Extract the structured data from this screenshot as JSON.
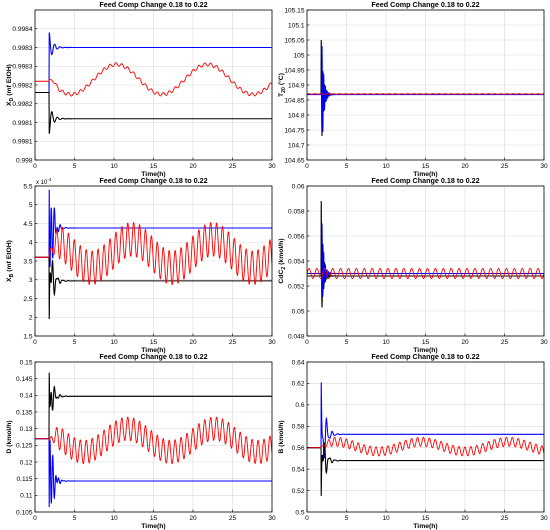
{
  "figure": {
    "background": "#ffffff",
    "grid_color": "#d9d9d9"
  },
  "chart_data": [
    {
      "type": "line",
      "title": "Feed Comp Change 0.18 to 0.22",
      "xlabel": "Time(h)",
      "ylabel": "X",
      "ylabel_sub": "D",
      "ylabel_rest": " (mf EtOH)",
      "xlim": [
        0,
        30
      ],
      "ylim": [
        0.998,
        0.9984
      ],
      "xticks": [
        "0",
        "5",
        "10",
        "15",
        "20",
        "25",
        "30"
      ],
      "yticks": [
        "0.998",
        "0.9981",
        "0.9981",
        "0.9982",
        "0.9982",
        "0.9983",
        "0.9983",
        "0.9984"
      ],
      "ytick_values": [
        0.998,
        0.99805,
        0.9981,
        0.99815,
        0.9982,
        0.99825,
        0.9983,
        0.99835
      ],
      "y_exponent": "",
      "grid": true,
      "series": [
        {
          "color": "#0000ff",
          "kind": "step",
          "initial": 0.99818,
          "disturb_at": 1.8,
          "final": 0.9983,
          "spike": 0.99834,
          "osc_amp": 0.0
        },
        {
          "color": "#000000",
          "kind": "step",
          "initial": 0.99818,
          "disturb_at": 1.8,
          "final": 0.99811,
          "spike": 0.99807,
          "osc_amp": 0.0
        },
        {
          "color": "#ff0000",
          "kind": "wave",
          "start": 0.99821,
          "mean": 0.998215,
          "slow_amp": 4e-05,
          "slow_period": 11.5,
          "slow_phase": 3.2,
          "fast_amp": 4.5e-06,
          "fast_period": 0.75
        }
      ]
    },
    {
      "type": "line",
      "title": "Feed Comp Change 0.18 to 0.22",
      "xlabel": "Time(h)",
      "ylabel": "T",
      "ylabel_sub": "20",
      "ylabel_rest": " (°C)",
      "xlim": [
        0,
        30
      ],
      "ylim": [
        104.65,
        105.15
      ],
      "xticks": [
        "0",
        "5",
        "10",
        "15",
        "20",
        "25",
        "30"
      ],
      "yticks": [
        "104.65",
        "104.7",
        "104.75",
        "104.8",
        "104.85",
        "104.9",
        "104.95",
        "105",
        "105.05",
        "105.1",
        "105.15"
      ],
      "ytick_values": [
        104.65,
        104.7,
        104.75,
        104.8,
        104.85,
        104.9,
        104.95,
        105.0,
        105.05,
        105.1,
        105.15
      ],
      "y_exponent": "",
      "grid": true,
      "series": [
        {
          "color": "#000000",
          "kind": "spike",
          "level": 104.869,
          "disturb_at": 1.8,
          "hi": 105.05,
          "lo": 104.66
        },
        {
          "color": "#0000ff",
          "kind": "spike",
          "level": 104.868,
          "disturb_at": 1.9,
          "hi": 105.03,
          "lo": 104.68
        },
        {
          "color": "#ff0000",
          "kind": "flat",
          "level": 104.87,
          "ripple": 0.001
        }
      ]
    },
    {
      "type": "line",
      "title": "Feed Comp Change 0.18 to 0.22",
      "xlabel": "Time(h)",
      "ylabel": "X",
      "ylabel_sub": "B",
      "ylabel_rest": " (mf EtOH)",
      "xlim": [
        0,
        30
      ],
      "ylim": [
        1.5,
        5.5
      ],
      "xticks": [
        "0",
        "5",
        "10",
        "15",
        "20",
        "25",
        "30"
      ],
      "yticks": [
        "1.5",
        "2",
        "2.5",
        "3",
        "3.5",
        "4",
        "4.5",
        "5",
        "5.5"
      ],
      "ytick_values": [
        1.5,
        2,
        2.5,
        3,
        3.5,
        4,
        4.5,
        5,
        5.5
      ],
      "y_exponent": "x 10",
      "y_exponent_power": "-4",
      "grid": true,
      "series": [
        {
          "color": "#0000ff",
          "kind": "step",
          "initial": 3.6,
          "disturb_at": 1.8,
          "final": 4.38,
          "spike": 5.4,
          "dip": 2.3
        },
        {
          "color": "#000000",
          "kind": "step",
          "initial": 3.6,
          "disturb_at": 1.8,
          "final": 2.97,
          "spike": 1.95,
          "dip": 3.9
        },
        {
          "color": "#ff0000",
          "kind": "wave",
          "start": 3.6,
          "mean": 3.7,
          "slow_amp": 0.38,
          "slow_period": 10.2,
          "slow_phase": 1.4,
          "fast_amp": 0.45,
          "fast_period": 0.75
        }
      ]
    },
    {
      "type": "line",
      "title": "Feed Comp Change 0.18 to 0.22",
      "xlabel": "Time(h)",
      "ylabel": "CdC",
      "ylabel_sub": "2",
      "ylabel_rest": " (kmol/h)",
      "xlim": [
        0,
        30
      ],
      "ylim": [
        0.048,
        0.06
      ],
      "xticks": [
        "0",
        "5",
        "10",
        "15",
        "20",
        "25",
        "30"
      ],
      "yticks": [
        "0.048",
        "0.05",
        "0.052",
        "0.054",
        "0.056",
        "0.058",
        "0.06"
      ],
      "ytick_values": [
        0.048,
        0.05,
        0.052,
        0.054,
        0.056,
        0.058,
        0.06
      ],
      "y_exponent": "",
      "grid": true,
      "series": [
        {
          "color": "#000000",
          "kind": "spike",
          "level": 0.0528,
          "disturb_at": 1.8,
          "hi": 0.0588,
          "lo": 0.049
        },
        {
          "color": "#0000ff",
          "kind": "spike",
          "level": 0.053,
          "disturb_at": 1.9,
          "hi": 0.057,
          "lo": 0.0502
        },
        {
          "color": "#ff0000",
          "kind": "band",
          "level": 0.053,
          "amp": 0.0004,
          "period": 1.0
        }
      ]
    },
    {
      "type": "line",
      "title": "Feed Comp Change 0.18 to 0.22",
      "xlabel": "Time(h)",
      "ylabel": "D",
      "ylabel_sub": "",
      "ylabel_rest": " (kmol/h)",
      "xlim": [
        0,
        30
      ],
      "ylim": [
        0.105,
        0.15
      ],
      "xticks": [
        "0",
        "5",
        "10",
        "15",
        "20",
        "25",
        "30"
      ],
      "yticks": [
        "0.105",
        "0.11",
        "0.115",
        "0.12",
        "0.125",
        "0.13",
        "0.135",
        "0.14",
        "0.145",
        "0.15"
      ],
      "ytick_values": [
        0.105,
        0.11,
        0.115,
        0.12,
        0.125,
        0.13,
        0.135,
        0.14,
        0.145,
        0.15
      ],
      "y_exponent": "",
      "grid": true,
      "series": [
        {
          "color": "#000000",
          "kind": "step",
          "initial": 0.127,
          "disturb_at": 1.8,
          "final": 0.1397,
          "spike": 0.1468,
          "dip": 0.131
        },
        {
          "color": "#0000ff",
          "kind": "step",
          "initial": 0.127,
          "disturb_at": 1.8,
          "final": 0.1143,
          "spike": 0.1065,
          "dip": 0.136
        },
        {
          "color": "#ff0000",
          "kind": "wave",
          "start": 0.127,
          "mean": 0.1265,
          "slow_amp": 0.0035,
          "slow_period": 11.0,
          "slow_phase": 2.2,
          "fast_amp": 0.0035,
          "fast_period": 0.75
        }
      ]
    },
    {
      "type": "line",
      "title": "Feed Comp Change 0.18 to 0.22",
      "xlabel": "Time(h)",
      "ylabel": "B",
      "ylabel_sub": "",
      "ylabel_rest": " (kmol/h)",
      "xlim": [
        0,
        30
      ],
      "ylim": [
        0.5,
        0.64
      ],
      "xticks": [
        "0",
        "5",
        "10",
        "15",
        "20",
        "25",
        "30"
      ],
      "yticks": [
        "0.5",
        "0.52",
        "0.54",
        "0.56",
        "0.58",
        "0.6",
        "0.62",
        "0.64"
      ],
      "ytick_values": [
        0.5,
        0.52,
        0.54,
        0.56,
        0.58,
        0.6,
        0.62,
        0.64
      ],
      "y_exponent": "",
      "grid": true,
      "series": [
        {
          "color": "#0000ff",
          "kind": "step",
          "initial": 0.56,
          "disturb_at": 1.8,
          "final": 0.5725,
          "spike": 0.621,
          "dip": 0.545
        },
        {
          "color": "#000000",
          "kind": "step",
          "initial": 0.56,
          "disturb_at": 1.8,
          "final": 0.548,
          "spike": 0.515,
          "dip": 0.575
        },
        {
          "color": "#ff0000",
          "kind": "wave",
          "start": 0.56,
          "mean": 0.561,
          "slow_amp": 0.0045,
          "slow_period": 11.0,
          "slow_phase": 0.6,
          "fast_amp": 0.0042,
          "fast_period": 0.75
        }
      ]
    }
  ]
}
